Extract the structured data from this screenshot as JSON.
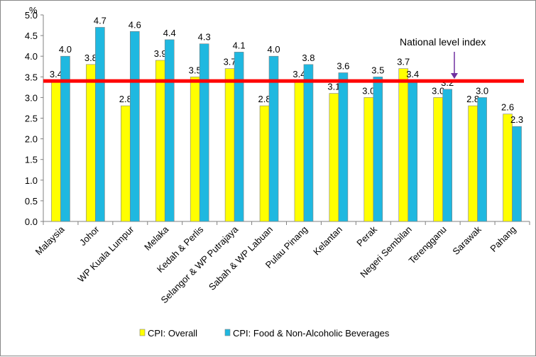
{
  "chart_data": {
    "type": "bar",
    "ylabel": "%",
    "ylim": [
      0,
      5
    ],
    "ytick_step": 0.5,
    "categories": [
      "Malaysia",
      "Johor",
      "WP Kuala Lumpur",
      "Melaka",
      "Kedah & Perlis",
      "Selangor & WP Putrajaya",
      "Sabah & WP Labuan",
      "Pulau Pinang",
      "Kelantan",
      "Perak",
      "Negeri Sembilan",
      "Terengganu",
      "Sarawak",
      "Pahang"
    ],
    "series": [
      {
        "name": "CPI: Overall",
        "color": "#ffff00",
        "values": [
          3.4,
          3.8,
          2.8,
          3.9,
          3.5,
          3.7,
          2.8,
          3.4,
          3.1,
          3.0,
          3.7,
          3.0,
          2.8,
          2.6
        ]
      },
      {
        "name": "CPI: Food & Non-Alcoholic Beverages",
        "color": "#1fb8e0",
        "values": [
          4.0,
          4.7,
          4.6,
          4.4,
          4.3,
          4.1,
          4.0,
          3.8,
          3.6,
          3.5,
          3.4,
          3.2,
          3.0,
          2.3
        ]
      }
    ],
    "reference_line": {
      "value": 3.4,
      "color": "#ff0000"
    },
    "annotation": {
      "text": "National level index",
      "arrow_color": "#7030a0"
    },
    "grid": false,
    "legend": "bottom"
  }
}
